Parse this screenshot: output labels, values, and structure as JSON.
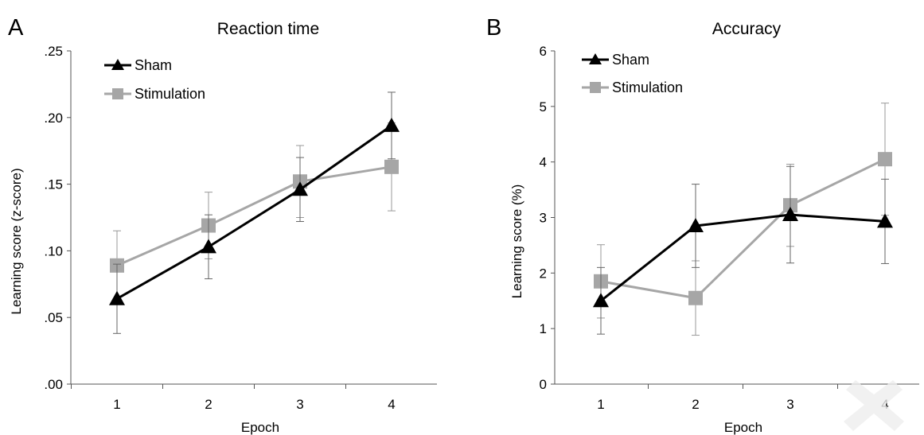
{
  "chart_data": [
    {
      "type": "line",
      "panel_letter": "A",
      "title": "Reaction time",
      "xlabel": "Epoch",
      "ylabel": "Learning score (z-score)",
      "categories": [
        "1",
        "2",
        "3",
        "4"
      ],
      "ylim": [
        0,
        0.25
      ],
      "yticks": [
        ".00",
        ".05",
        ".10",
        ".15",
        ".20",
        ".25"
      ],
      "ytick_values": [
        0,
        0.05,
        0.1,
        0.15,
        0.2,
        0.25
      ],
      "legend_position": "top-left",
      "grid": false,
      "series": [
        {
          "name": "Sham",
          "color": "#000000",
          "marker": "triangle",
          "values": [
            0.064,
            0.103,
            0.146,
            0.194
          ],
          "errors": [
            0.026,
            0.024,
            0.024,
            0.025
          ]
        },
        {
          "name": "Stimulation",
          "color": "#a6a6a6",
          "marker": "square",
          "values": [
            0.089,
            0.119,
            0.152,
            0.163
          ],
          "errors": [
            0.026,
            0.025,
            0.027,
            0.033
          ]
        }
      ]
    },
    {
      "type": "line",
      "panel_letter": "B",
      "title": "Accuracy",
      "xlabel": "Epoch",
      "ylabel": "Learning score (%)",
      "categories": [
        "1",
        "2",
        "3",
        "4"
      ],
      "ylim": [
        0,
        6
      ],
      "yticks": [
        "0",
        "1",
        "2",
        "3",
        "4",
        "5",
        "6"
      ],
      "ytick_values": [
        0,
        1,
        2,
        3,
        4,
        5,
        6
      ],
      "legend_position": "top-left",
      "grid": false,
      "series": [
        {
          "name": "Sham",
          "color": "#000000",
          "marker": "triangle",
          "values": [
            1.5,
            2.85,
            3.05,
            2.93
          ],
          "errors": [
            0.6,
            0.75,
            0.87,
            0.76
          ]
        },
        {
          "name": "Stimulation",
          "color": "#a6a6a6",
          "marker": "square",
          "values": [
            1.85,
            1.55,
            3.22,
            4.05
          ],
          "errors": [
            0.66,
            0.67,
            0.74,
            1.01
          ]
        }
      ]
    }
  ]
}
